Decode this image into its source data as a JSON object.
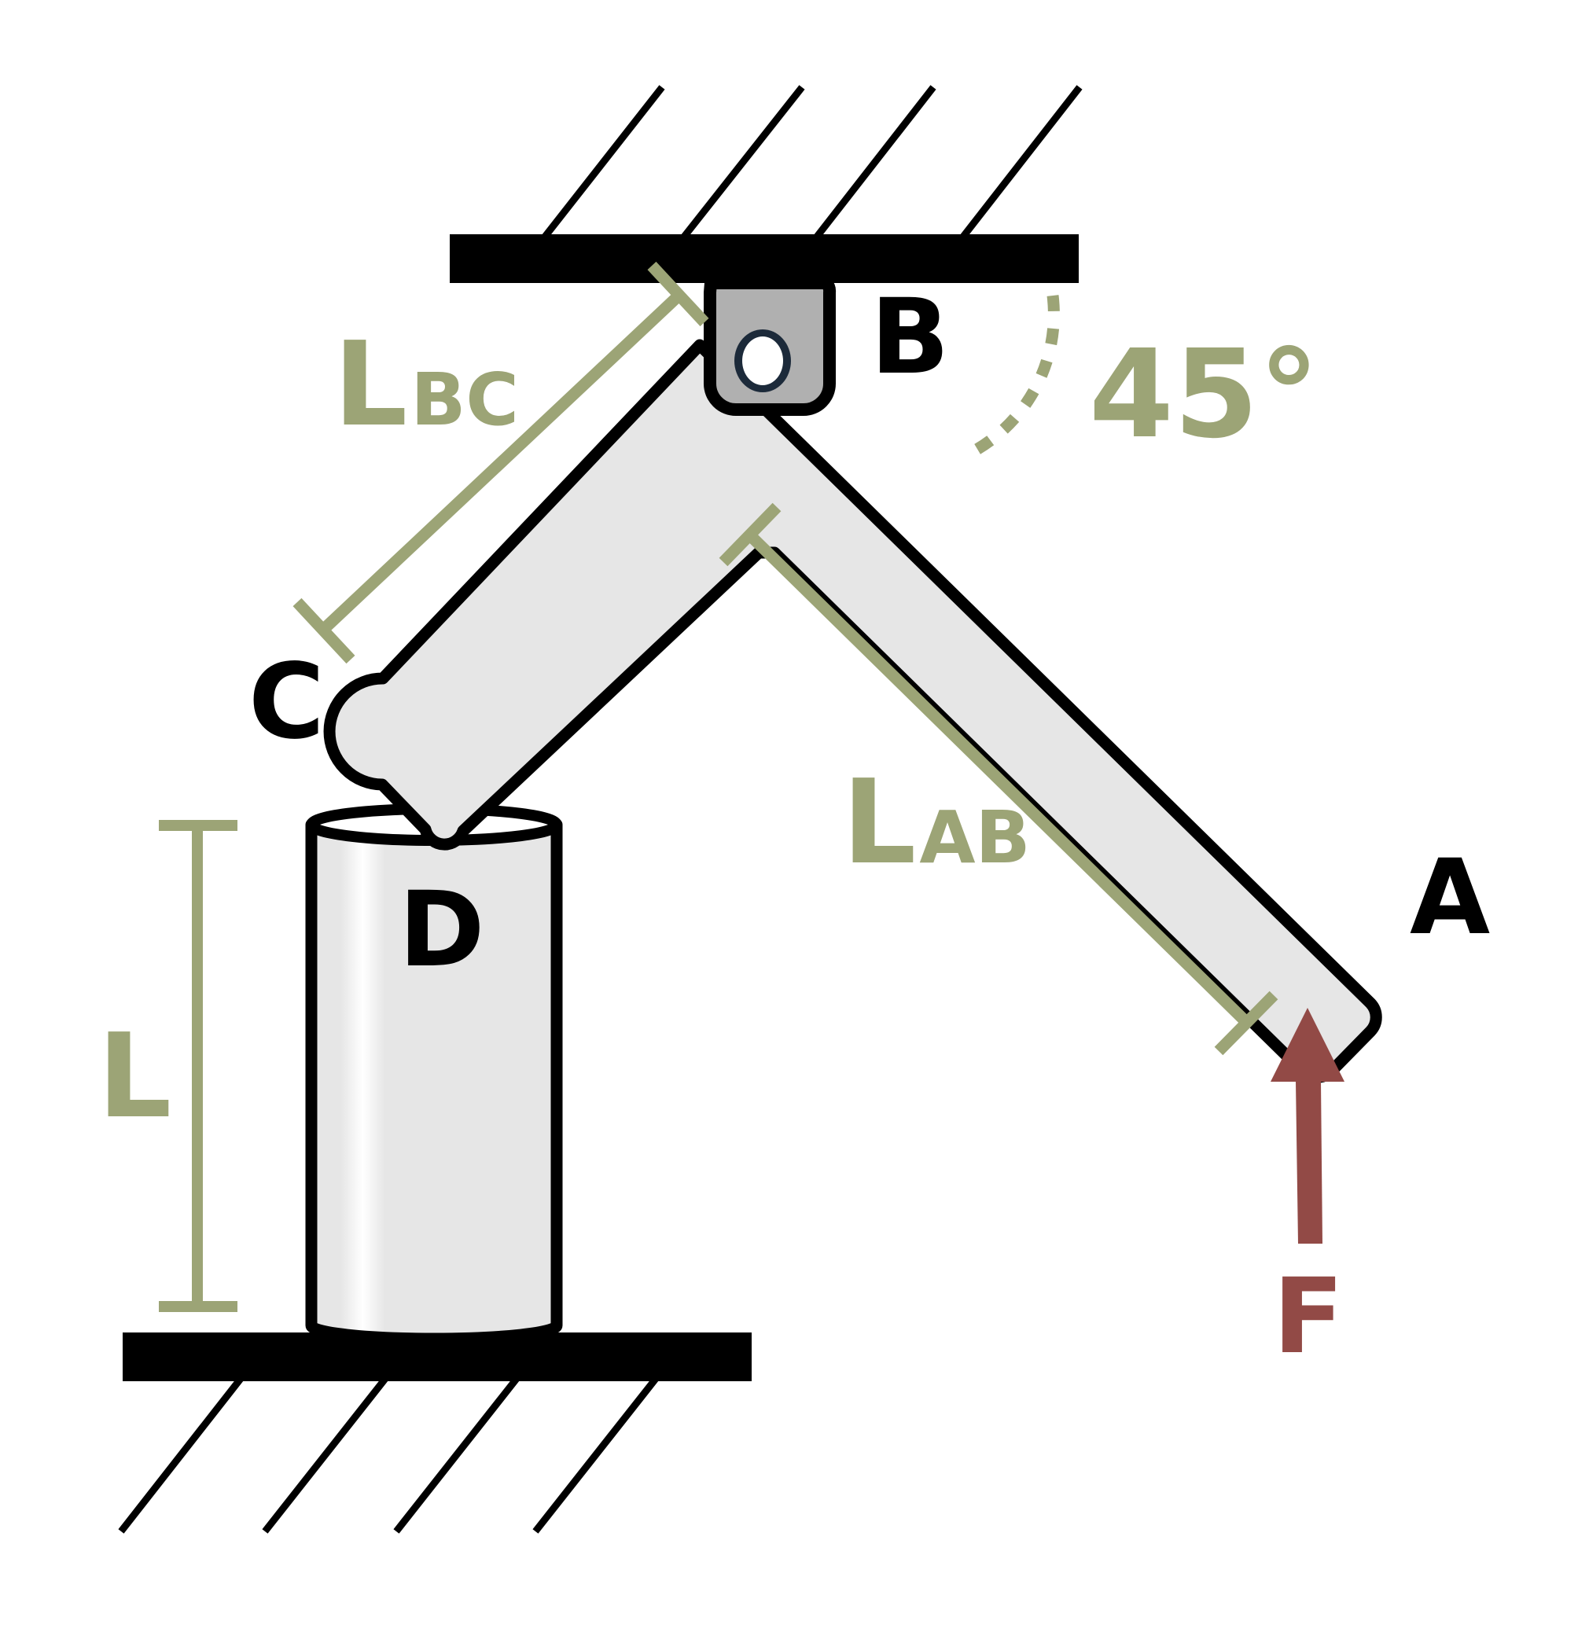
{
  "labels": {
    "point_a": "A",
    "point_b": "B",
    "point_c": "C",
    "point_d": "D",
    "force": "F",
    "angle": "45°",
    "length_l": "L",
    "length_ab_main": "L",
    "length_ab_sub": "AB",
    "length_bc_main": "L",
    "length_bc_sub": "BC"
  },
  "colors": {
    "dimension": "#9ca476",
    "force": "#924a46",
    "outline": "#000000",
    "member_fill": "#e6e6e6",
    "pin_block_fill": "#b0b0b0",
    "pin_ring": "#1c2a3a"
  }
}
